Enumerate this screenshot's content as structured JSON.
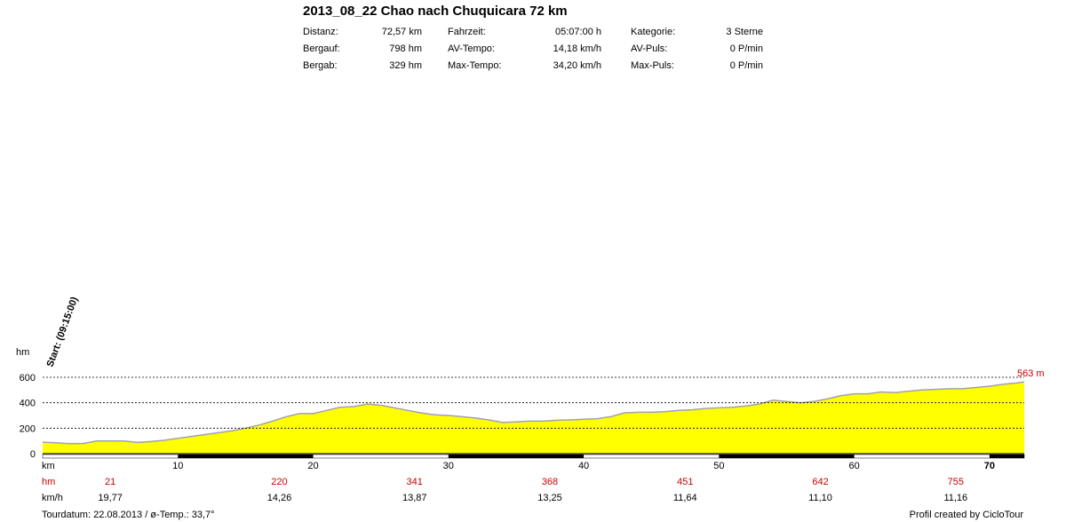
{
  "title": "2013_08_22 Chao nach Chuquicara 72 km",
  "stats": [
    {
      "label": "Distanz:",
      "value": "72,57 km",
      "label2": "Fahrzeit:",
      "value2": "05:07:00 h",
      "label3": "Kategorie:",
      "value3": "3 Sterne"
    },
    {
      "label": "Bergauf:",
      "value": "798 hm",
      "label2": "AV-Tempo:",
      "value2": "14,18 km/h",
      "label3": "AV-Puls:",
      "value3": "0 P/min"
    },
    {
      "label": "Bergab:",
      "value": "329 hm",
      "label2": "Max-Tempo:",
      "value2": "34,20 km/h",
      "label3": "Max-Puls:",
      "value3": "0 P/min"
    }
  ],
  "footer": {
    "tour_date": "Tourdatum: 22.08.2013  /  ø-Temp.: 33,7°",
    "credit": "Profil created by CicloTour"
  },
  "colors": {
    "fill": "#ffff00",
    "line": "#a0a0b4",
    "red": "#cc0000",
    "grid": "#000000"
  },
  "chart_data": {
    "type": "area",
    "ylabel": "hm",
    "xlabel": "km",
    "xlim": [
      0,
      72.57
    ],
    "ylim": [
      0,
      600
    ],
    "yticks": [
      0,
      200,
      400,
      600
    ],
    "xticks": [
      10,
      20,
      30,
      40,
      50,
      60,
      70
    ],
    "grid": "dashed horizontal",
    "start_label": "Start: (09:15:00)",
    "end_label": "563 m",
    "profile": {
      "x": [
        0,
        1,
        2,
        3,
        4,
        5,
        6,
        7,
        8,
        9,
        10,
        11,
        12,
        13,
        14,
        15,
        16,
        17,
        18,
        19,
        20,
        21,
        22,
        23,
        24,
        25,
        26,
        27,
        28,
        29,
        30,
        31,
        32,
        33,
        34,
        35,
        36,
        37,
        38,
        39,
        40,
        41,
        42,
        43,
        44,
        45,
        46,
        47,
        48,
        49,
        50,
        51,
        52,
        53,
        54,
        55,
        56,
        57,
        58,
        59,
        60,
        61,
        62,
        63,
        64,
        65,
        66,
        67,
        68,
        69,
        70,
        71,
        72,
        72.57
      ],
      "y": [
        90,
        85,
        78,
        80,
        100,
        100,
        100,
        88,
        95,
        105,
        120,
        135,
        150,
        165,
        180,
        200,
        225,
        255,
        290,
        315,
        315,
        340,
        365,
        370,
        390,
        380,
        360,
        340,
        320,
        305,
        300,
        290,
        280,
        265,
        245,
        250,
        255,
        255,
        262,
        265,
        270,
        275,
        290,
        320,
        325,
        325,
        330,
        340,
        345,
        355,
        360,
        365,
        375,
        390,
        420,
        410,
        400,
        410,
        430,
        455,
        470,
        470,
        485,
        480,
        490,
        500,
        505,
        510,
        510,
        520,
        530,
        545,
        555,
        563
      ]
    },
    "rows": [
      {
        "label": "hm",
        "values": [
          "21",
          "220",
          "341",
          "368",
          "451",
          "642",
          "755"
        ]
      },
      {
        "label": "km/h",
        "values": [
          "19,77",
          "14,26",
          "13,87",
          "13,25",
          "11,64",
          "11,10",
          "11,16"
        ]
      }
    ],
    "row_positions_km": [
      5,
      17.5,
      27.5,
      37.5,
      47.5,
      57.5,
      67.5
    ]
  }
}
